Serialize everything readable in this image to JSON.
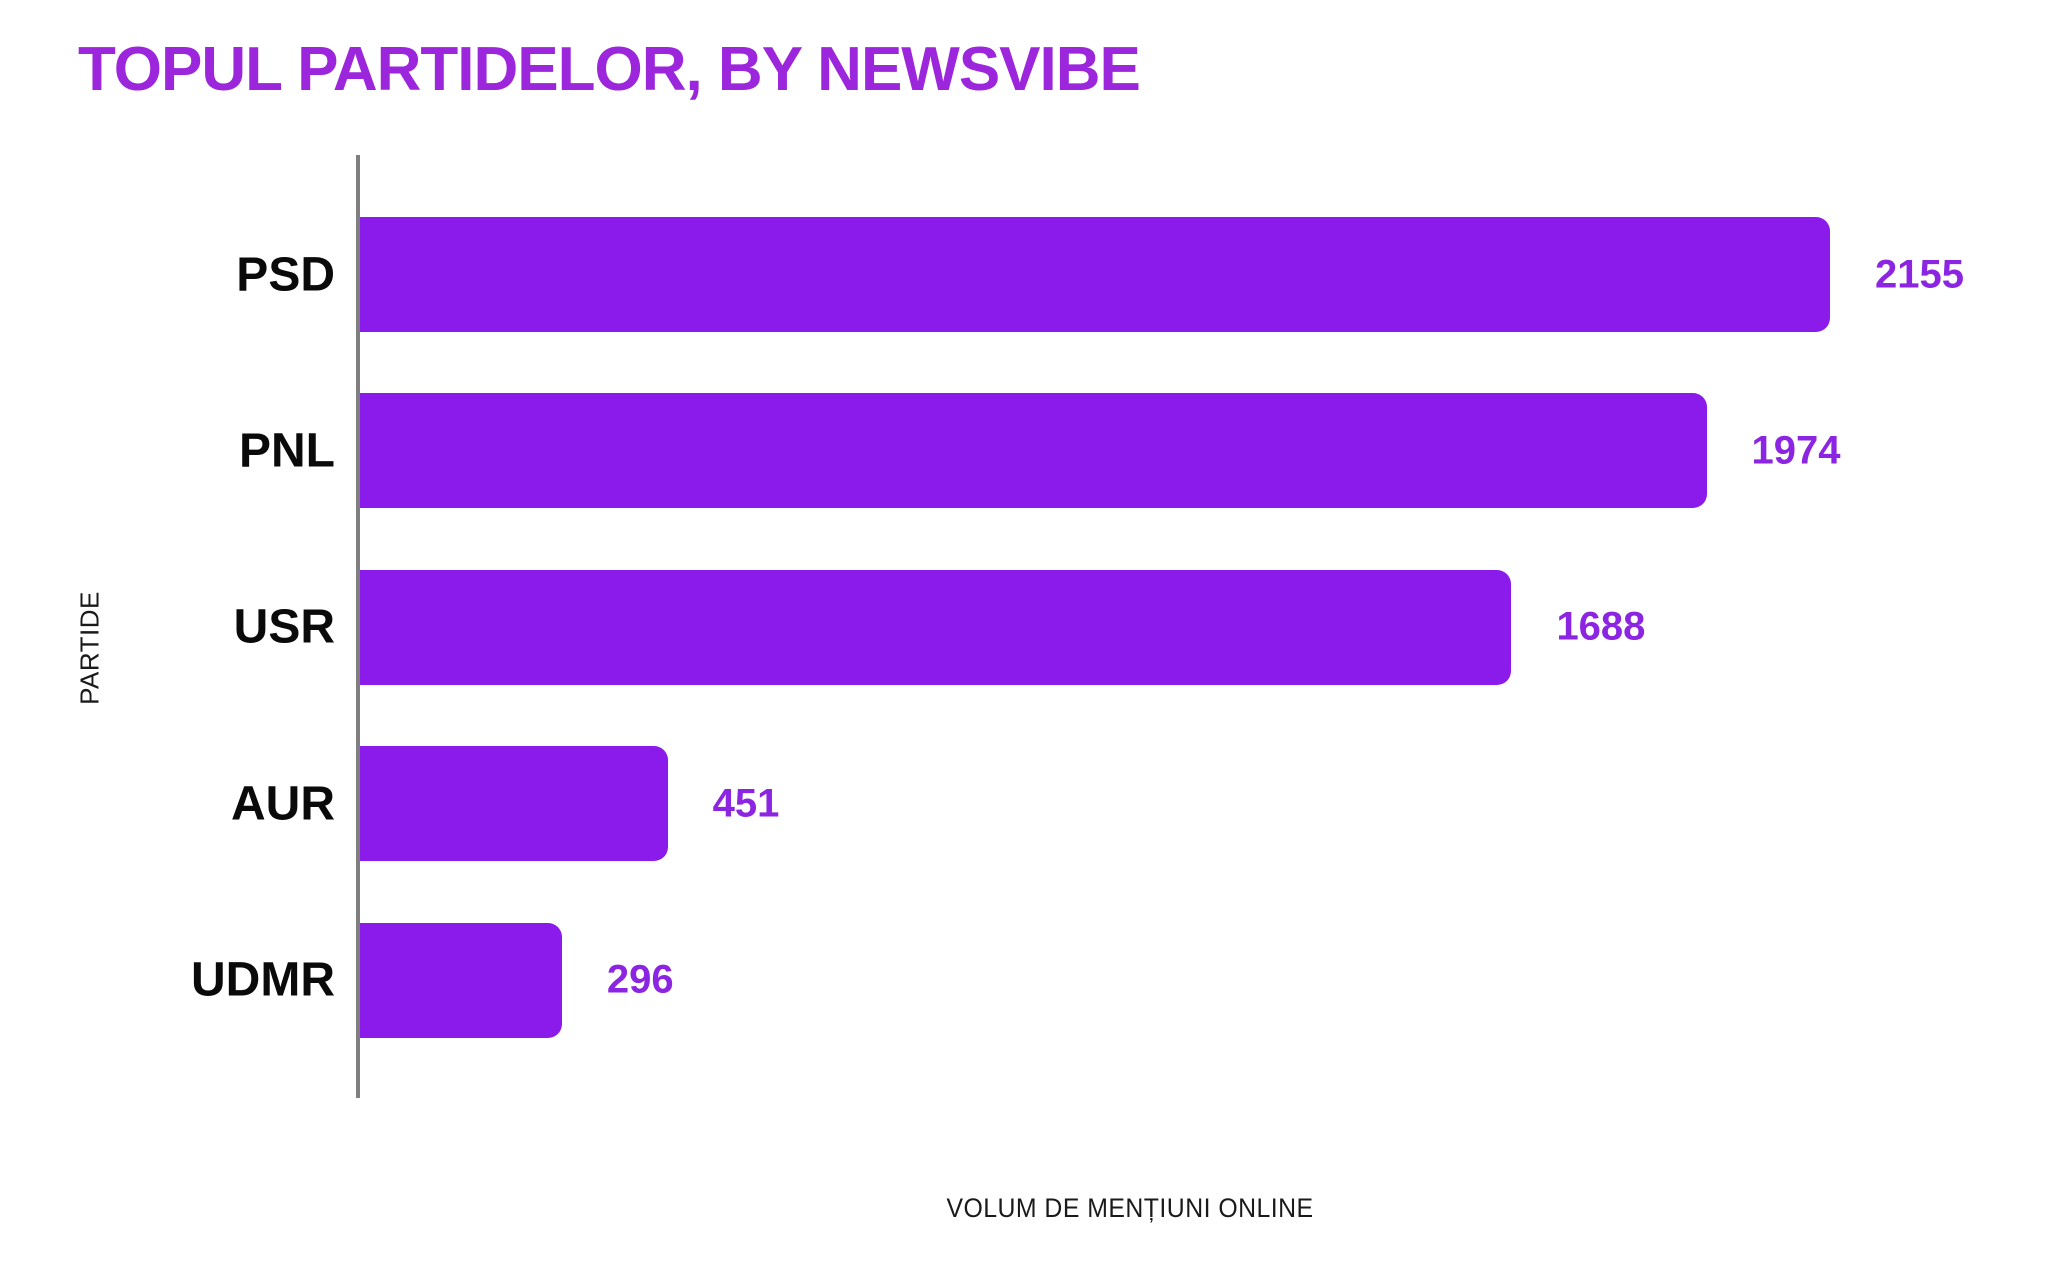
{
  "colors": {
    "bar": "#8a1bea",
    "title": "#9b26db",
    "value_text": "#8c25e1",
    "category_text": "#0a0a0a",
    "axis_line": "#7f7f7f",
    "axis_label_text": "#1a1a1a",
    "background": "#ffffff"
  },
  "chart_data": {
    "type": "bar",
    "orientation": "horizontal",
    "title": "TOPUL PARTIDELOR, BY NEWSVIBE",
    "categories": [
      "PSD",
      "PNL",
      "USR",
      "AUR",
      "UDMR"
    ],
    "values": [
      2155,
      1974,
      1688,
      451,
      296
    ],
    "value_labels": [
      "2155",
      "1974",
      "1688",
      "451",
      "296"
    ],
    "xlabel": "VOLUM DE MENȚIUNI ONLINE",
    "ylabel": "PARTIDE",
    "xlim": [
      0,
      2155
    ],
    "grid": false,
    "legend": false,
    "bars_sorted_descending": true
  }
}
